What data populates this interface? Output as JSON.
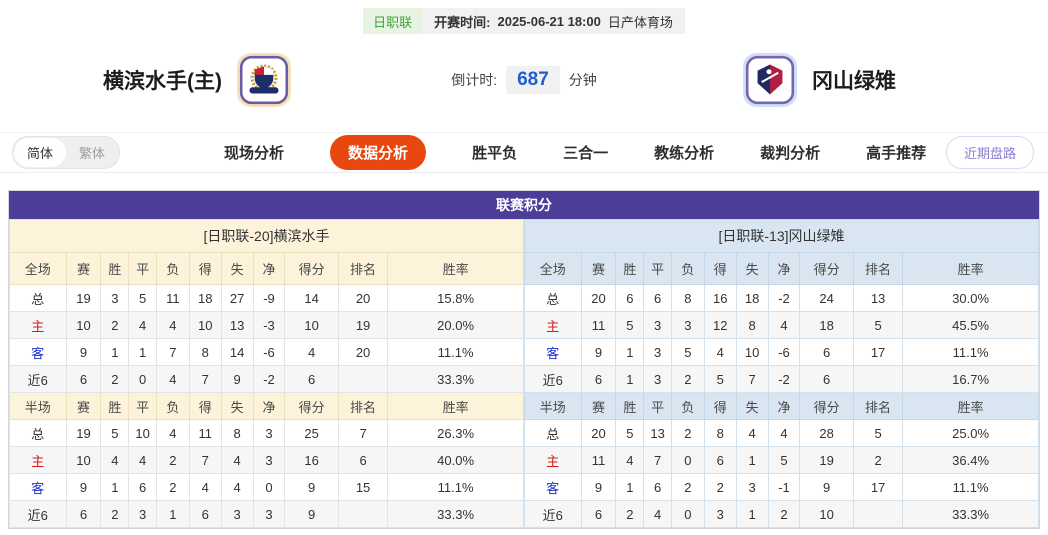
{
  "top_bar": {
    "league_badge": "日职联",
    "kickoff_label": "开赛时间:",
    "kickoff_time": "2025-06-21 18:00",
    "venue": "日产体育场"
  },
  "header": {
    "home_team": "横滨水手(主)",
    "away_team": "冈山绿雉",
    "countdown_label": "倒计时:",
    "countdown_value": "687",
    "countdown_unit": "分钟"
  },
  "nav": {
    "lang": [
      "简体",
      "繁体"
    ],
    "tabs": [
      {
        "label": "现场分析",
        "active": false
      },
      {
        "label": "数据分析",
        "active": true
      },
      {
        "label": "胜平负",
        "active": false
      },
      {
        "label": "三合一",
        "active": false
      },
      {
        "label": "教练分析",
        "active": false
      },
      {
        "label": "裁判分析",
        "active": false
      },
      {
        "label": "高手推荐",
        "active": false
      }
    ],
    "recent_button": "近期盘路"
  },
  "board": {
    "title": "联赛积分",
    "columns_full": [
      "全场",
      "赛",
      "胜",
      "平",
      "负",
      "得",
      "失",
      "净",
      "得分",
      "排名",
      "胜率"
    ],
    "columns_half": [
      "半场",
      "赛",
      "胜",
      "平",
      "负",
      "得",
      "失",
      "净",
      "得分",
      "排名",
      "胜率"
    ],
    "home": {
      "team_header": "[日职联-20]横滨水手",
      "full_rows": [
        [
          "总",
          "19",
          "3",
          "5",
          "11",
          "18",
          "27",
          "-9",
          "14",
          "20",
          "15.8%"
        ],
        [
          "主",
          "10",
          "2",
          "4",
          "4",
          "10",
          "13",
          "-3",
          "10",
          "19",
          "20.0%"
        ],
        [
          "客",
          "9",
          "1",
          "1",
          "7",
          "8",
          "14",
          "-6",
          "4",
          "20",
          "11.1%"
        ],
        [
          "近6",
          "6",
          "2",
          "0",
          "4",
          "7",
          "9",
          "-2",
          "6",
          "",
          "33.3%"
        ]
      ],
      "half_rows": [
        [
          "总",
          "19",
          "5",
          "10",
          "4",
          "11",
          "8",
          "3",
          "25",
          "7",
          "26.3%"
        ],
        [
          "主",
          "10",
          "4",
          "4",
          "2",
          "7",
          "4",
          "3",
          "16",
          "6",
          "40.0%"
        ],
        [
          "客",
          "9",
          "1",
          "6",
          "2",
          "4",
          "4",
          "0",
          "9",
          "15",
          "11.1%"
        ],
        [
          "近6",
          "6",
          "2",
          "3",
          "1",
          "6",
          "3",
          "3",
          "9",
          "",
          "33.3%"
        ]
      ]
    },
    "away": {
      "team_header": "[日职联-13]冈山绿雉",
      "full_rows": [
        [
          "总",
          "20",
          "6",
          "6",
          "8",
          "16",
          "18",
          "-2",
          "24",
          "13",
          "30.0%"
        ],
        [
          "主",
          "11",
          "5",
          "3",
          "3",
          "12",
          "8",
          "4",
          "18",
          "5",
          "45.5%"
        ],
        [
          "客",
          "9",
          "1",
          "3",
          "5",
          "4",
          "10",
          "-6",
          "6",
          "17",
          "11.1%"
        ],
        [
          "近6",
          "6",
          "1",
          "3",
          "2",
          "5",
          "7",
          "-2",
          "6",
          "",
          "16.7%"
        ]
      ],
      "half_rows": [
        [
          "总",
          "20",
          "5",
          "13",
          "2",
          "8",
          "4",
          "4",
          "28",
          "5",
          "25.0%"
        ],
        [
          "主",
          "11",
          "4",
          "7",
          "0",
          "6",
          "1",
          "5",
          "19",
          "2",
          "36.4%"
        ],
        [
          "客",
          "9",
          "1",
          "6",
          "2",
          "2",
          "3",
          "-1",
          "9",
          "17",
          "11.1%"
        ],
        [
          "近6",
          "6",
          "2",
          "4",
          "0",
          "3",
          "1",
          "2",
          "10",
          "",
          "33.3%"
        ]
      ]
    }
  },
  "colors": {
    "accent_purple": "#4c3d99",
    "active_tab": "#e8470f",
    "home_theme": "#fdf3da",
    "away_theme": "#d9e6f1",
    "countdown_blue": "#1f5fd0",
    "badge_green": "#43a33b",
    "home_row_red": "#cf1d1d",
    "away_row_blue": "#1d2fcf"
  }
}
